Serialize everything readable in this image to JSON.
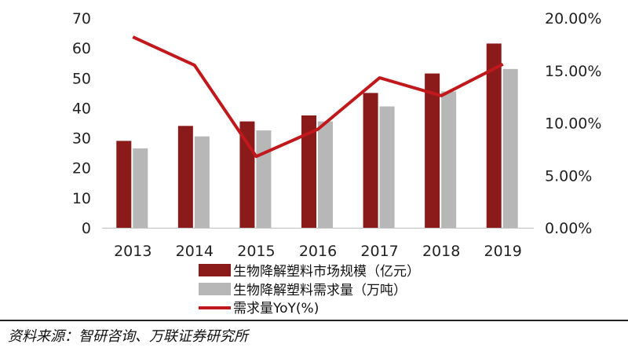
{
  "chart_data": {
    "type": "bar",
    "categories": [
      "2013",
      "2014",
      "2015",
      "2016",
      "2017",
      "2018",
      "2019"
    ],
    "series": [
      {
        "name": "生物降解塑料市场规模（亿元）",
        "type": "bar",
        "axis": "left",
        "color": "#8b1a1a",
        "values": [
          29,
          34,
          35.5,
          37.5,
          45,
          51.5,
          61.5
        ]
      },
      {
        "name": "生物降解塑料需求量（万吨）",
        "type": "bar",
        "axis": "left",
        "color": "#b7b7b7",
        "values": [
          26.5,
          30.5,
          32.5,
          35.5,
          40.5,
          45.5,
          53
        ]
      },
      {
        "name": "需求量YoY(%)",
        "type": "line",
        "axis": "right",
        "color": "#c0181b",
        "values": [
          18.2,
          15.5,
          6.8,
          9.4,
          14.3,
          12.6,
          15.6
        ]
      }
    ],
    "y_left": {
      "min": 0,
      "max": 70,
      "ticks": [
        0,
        10,
        20,
        30,
        40,
        50,
        60,
        70
      ]
    },
    "y_right": {
      "min": 0,
      "max": 20,
      "ticks": [
        "0.00%",
        "5.00%",
        "10.00%",
        "15.00%",
        "20.00%"
      ]
    },
    "legend_position": "bottom",
    "grid": false
  },
  "source_text": "资料来源：智研咨询、万联证券研究所"
}
